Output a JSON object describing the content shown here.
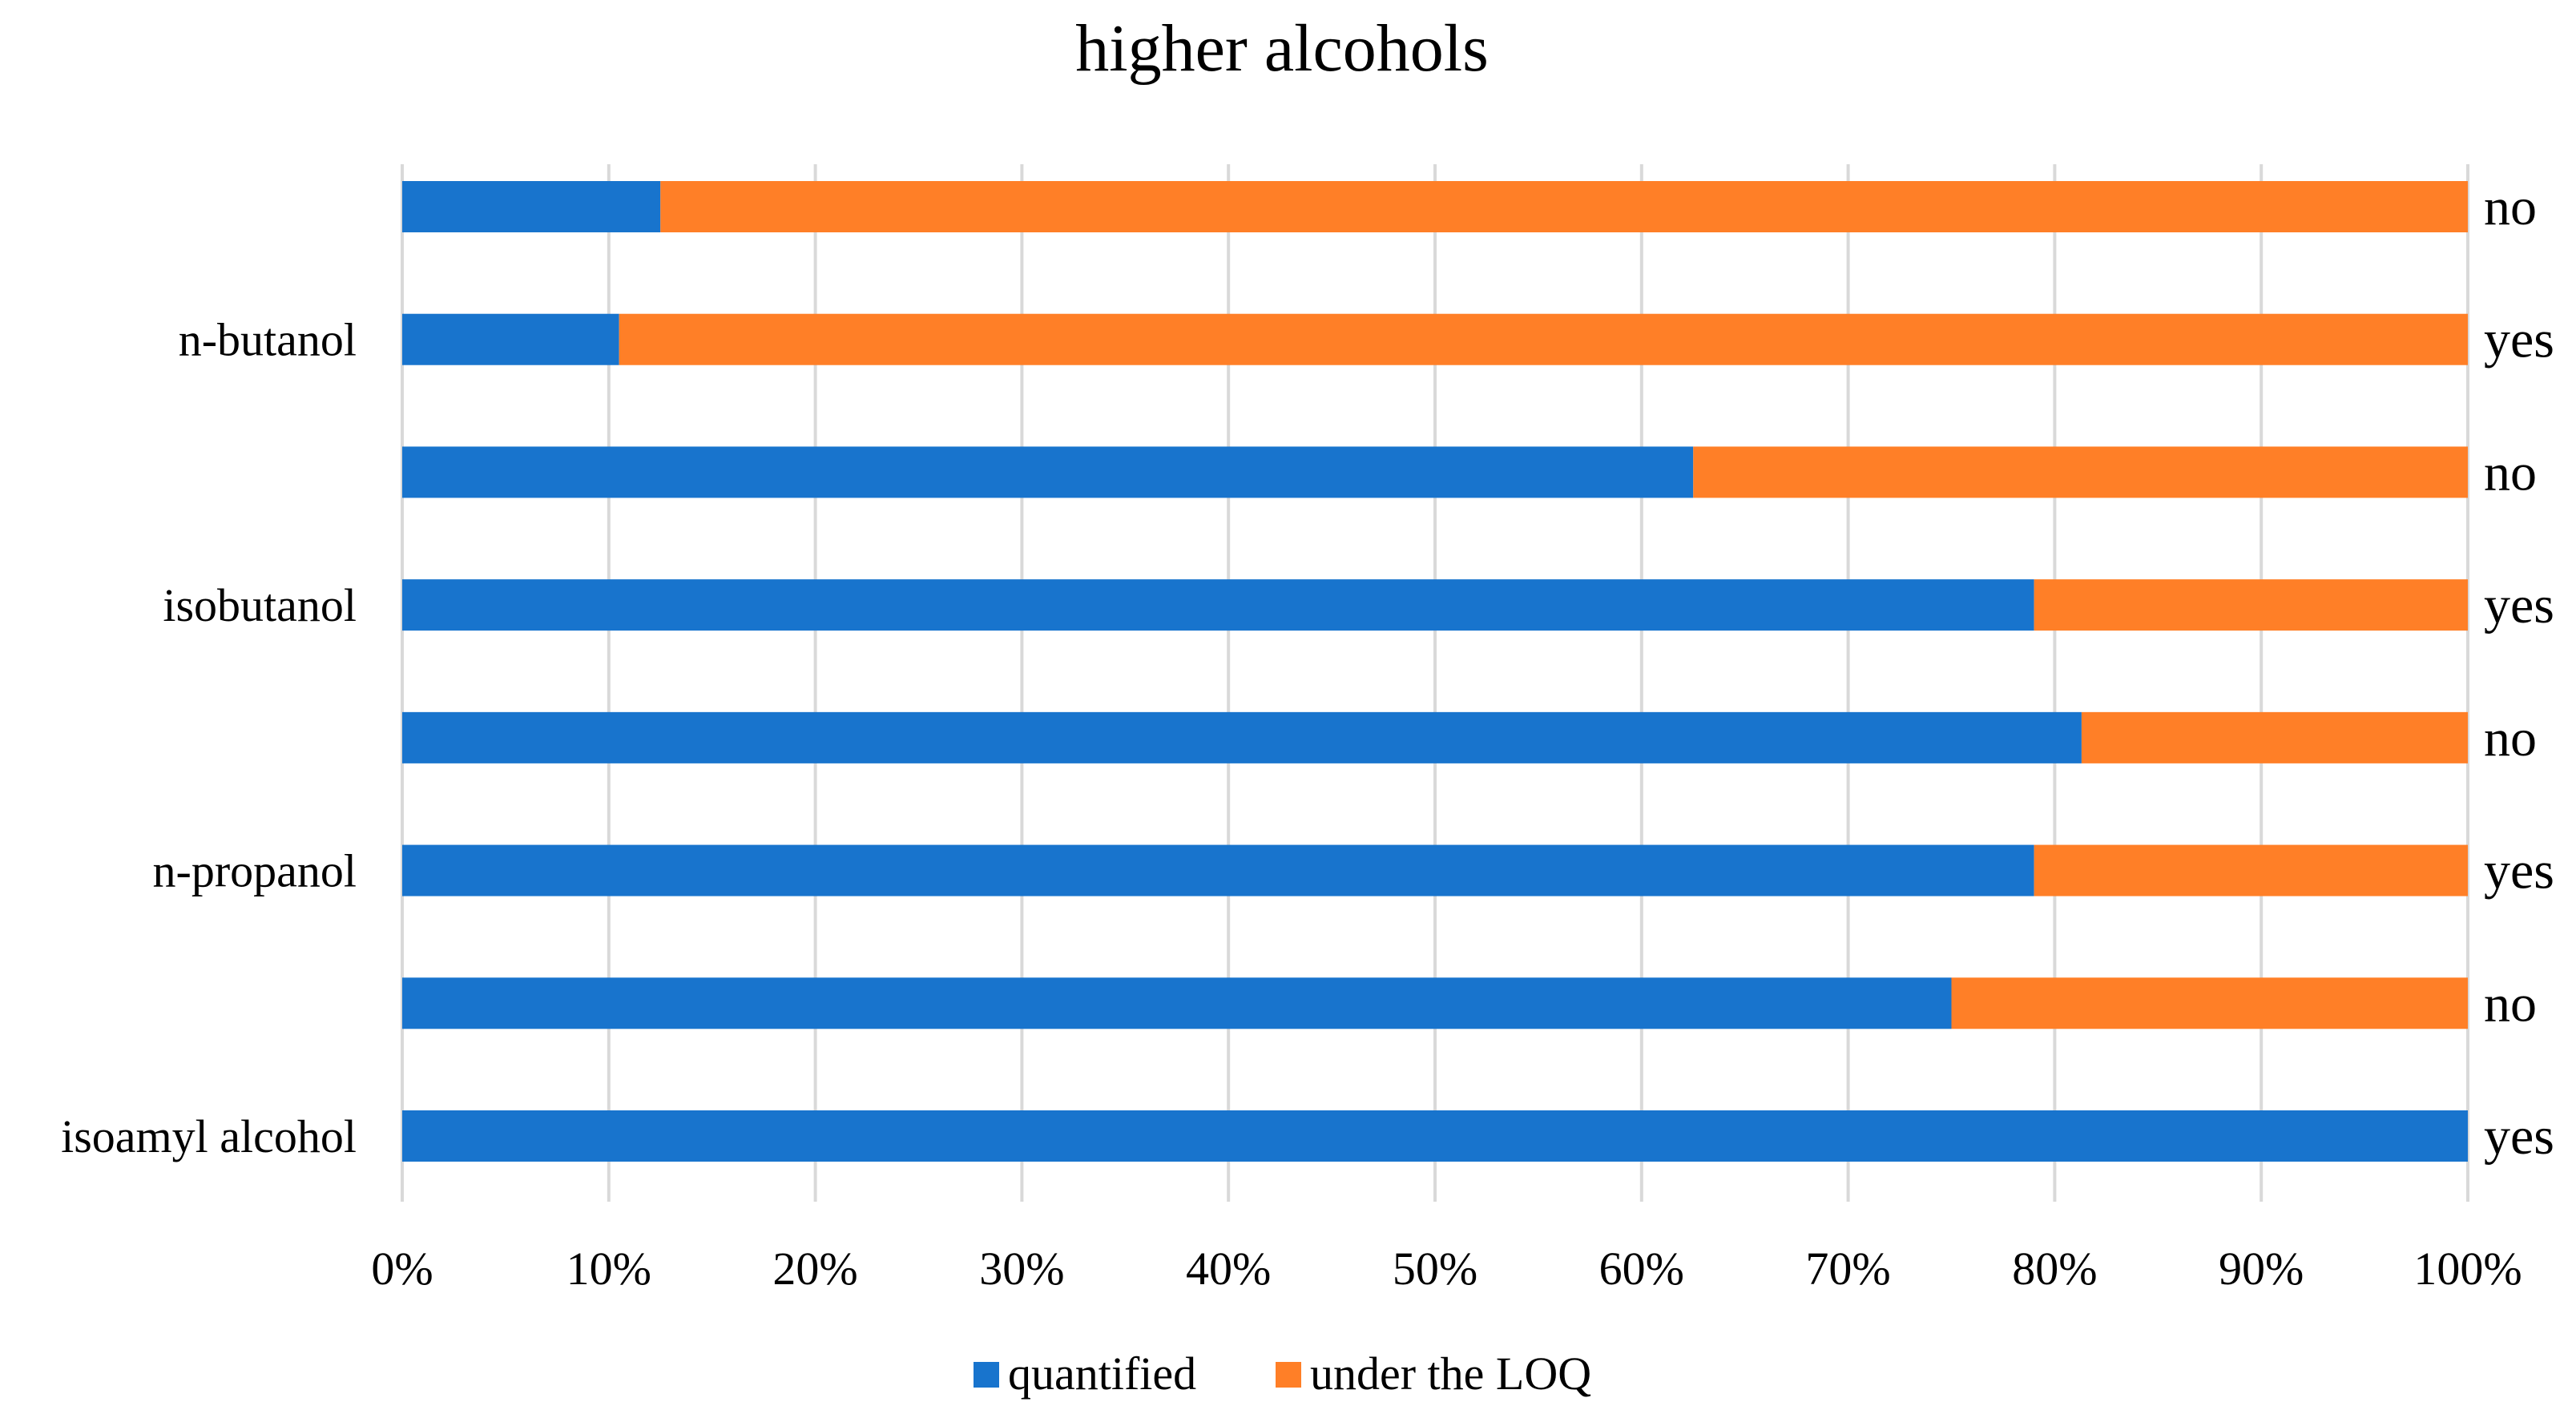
{
  "chart_data": {
    "type": "bar",
    "orientation": "horizontal",
    "stacked": "percent",
    "title": "higher alcohols",
    "xlabel": "",
    "ylabel": "",
    "xlim": [
      0,
      100
    ],
    "x_ticks": [
      "0%",
      "10%",
      "20%",
      "30%",
      "40%",
      "50%",
      "60%",
      "70%",
      "80%",
      "90%",
      "100%"
    ],
    "grid": true,
    "legend_position": "bottom",
    "categories": [
      "isoamyl alcohol",
      "",
      "n-propanol",
      "",
      "isobutanol",
      "",
      "n-butanol",
      ""
    ],
    "right_labels": [
      "yes",
      "no",
      "yes",
      "no",
      "yes",
      "no",
      "yes",
      "no"
    ],
    "series": [
      {
        "name": "quantified",
        "color": "#1874CD",
        "values": [
          100,
          75,
          79,
          81.3,
          79,
          62.5,
          10.5,
          12.5
        ]
      },
      {
        "name": "under the LOQ",
        "color": "#FF7F27",
        "values": [
          0,
          25,
          21,
          18.7,
          21,
          37.5,
          89.5,
          87.5
        ]
      }
    ]
  }
}
